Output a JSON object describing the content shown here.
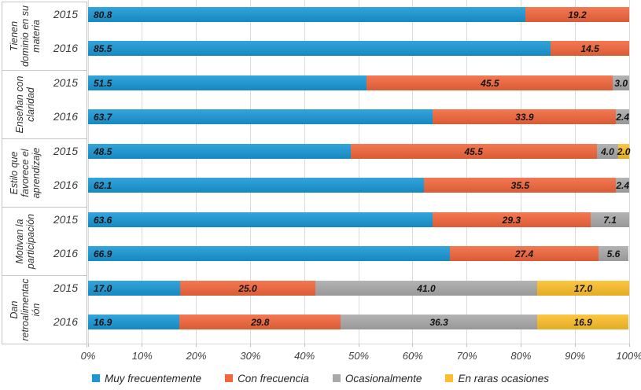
{
  "chart_data": {
    "type": "bar",
    "orientation": "horizontal",
    "stacked": true,
    "title": "",
    "unit": "%",
    "grid": true,
    "legend_position": "bottom",
    "x_axis": {
      "min": 0,
      "max": 100,
      "tick_step": 10,
      "tick_labels": [
        "0%",
        "10%",
        "20%",
        "30%",
        "40%",
        "50%",
        "60%",
        "70%",
        "80%",
        "90%",
        "100%"
      ]
    },
    "series": [
      {
        "name": "Muy frecuentemente",
        "color": "#1898d6"
      },
      {
        "name": "Con frecuencia",
        "color": "#f2663b"
      },
      {
        "name": "Ocasionalmente",
        "color": "#a9a9a9"
      },
      {
        "name": "En raras ocasiones",
        "color": "#fcbf29"
      }
    ],
    "categories": [
      {
        "label": "Tienen dominio en su materia",
        "label_lines": [
          "Tienen",
          "dominio en su",
          "materia"
        ],
        "rows": [
          {
            "year": "2015",
            "values": [
              80.8,
              19.2,
              0,
              0
            ]
          },
          {
            "year": "2016",
            "values": [
              85.5,
              14.5,
              0,
              0
            ]
          }
        ]
      },
      {
        "label": "Enseñan con claridad",
        "label_lines": [
          "Enseñan con",
          "claridad"
        ],
        "rows": [
          {
            "year": "2015",
            "values": [
              51.5,
              45.5,
              3.0,
              0
            ]
          },
          {
            "year": "2016",
            "values": [
              63.7,
              33.9,
              2.4,
              0
            ]
          }
        ]
      },
      {
        "label": "Estilo que favorece el aprendizaje",
        "label_lines": [
          "Estilo que",
          "favorece el",
          "aprendizaje"
        ],
        "rows": [
          {
            "year": "2015",
            "values": [
              48.5,
              45.5,
              4.0,
              2.0
            ]
          },
          {
            "year": "2016",
            "values": [
              62.1,
              35.5,
              2.4,
              0
            ]
          }
        ]
      },
      {
        "label": "Motivan la participación",
        "label_lines": [
          "Motivan la",
          "participación"
        ],
        "rows": [
          {
            "year": "2015",
            "values": [
              63.6,
              29.3,
              7.1,
              0
            ]
          },
          {
            "year": "2016",
            "values": [
              66.9,
              27.4,
              5.6,
              0
            ]
          }
        ]
      },
      {
        "label": "Dan retroalimentación",
        "label_lines": [
          "Dan",
          "retroalimentac",
          "ión"
        ],
        "rows": [
          {
            "year": "2015",
            "values": [
              17.0,
              25.0,
              41.0,
              17.0
            ]
          },
          {
            "year": "2016",
            "values": [
              16.9,
              29.8,
              36.3,
              16.9
            ]
          }
        ]
      }
    ],
    "colors": {
      "gridline": "#dadada",
      "axis_border": "#bfbfbf",
      "category_border": "#c6c6c6",
      "data_label": "#141414"
    }
  }
}
